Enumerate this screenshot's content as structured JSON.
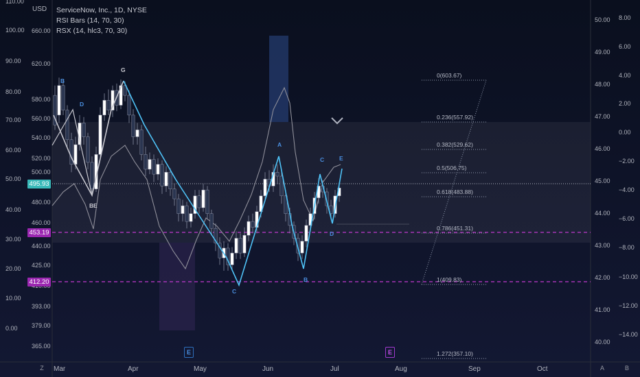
{
  "header": {
    "currency": "USD",
    "symbol_line": "ServiceNow, Inc., 1D, NYSE",
    "indicator1": "RSI Bars (14, 70, 30)",
    "indicator2": "RSX (14, hlc3, 70, 30)"
  },
  "price_tags": {
    "current": "495.93",
    "level_a": "453.19",
    "level_b": "412.20"
  },
  "earnings": {
    "marker1": "E",
    "marker2": "E"
  },
  "bottom_corner": {
    "left": "Z",
    "right_a": "A",
    "right_b": "B"
  },
  "colors": {
    "background": "#0c1022",
    "up_candle": "#ffffff",
    "down_candle": "#2a3550",
    "wave_line": "#4fc3f7",
    "wave_white": "#c8c8d0",
    "fib_dotted": "#8f99ad",
    "level_dashed": "#c23ad0",
    "current_tag": "#39b9b9",
    "level_tag": "#9b27b0",
    "rsx_line": "#8f8f9a",
    "earnings_blue": "#2e6fbd",
    "earnings_purple": "#a23ad0"
  },
  "chart_data": {
    "type": "candlestick",
    "symbol": "ServiceNow, Inc.",
    "interval": "1D",
    "exchange": "NYSE",
    "x_labels": [
      "Mar",
      "Apr",
      "May",
      "Jun",
      "Jul",
      "Aug",
      "Sep",
      "Oct"
    ],
    "price_axis_ticks": [
      "660.00",
      "620.00",
      "580.00",
      "560.00",
      "540.00",
      "520.00",
      "500.00",
      "480.00",
      "460.00",
      "440.00",
      "425.00",
      "410.00",
      "393.00",
      "379.00",
      "365.00"
    ],
    "rsi_axis_ticks": [
      "110.00",
      "100.00",
      "90.00",
      "80.00",
      "70.00",
      "60.00",
      "50.00",
      "40.00",
      "30.00",
      "20.00",
      "10.00",
      "0.00"
    ],
    "right_axis_ticks": [
      "50.00",
      "49.00",
      "48.00",
      "47.00",
      "46.00",
      "45.00",
      "44.00",
      "43.00",
      "42.00",
      "41.00",
      "40.00"
    ],
    "right_axis2_ticks": [
      "8.00",
      "6.00",
      "4.00",
      "2.00",
      "0.00",
      "−2.00",
      "−4.00",
      "−6.00",
      "−8.00",
      "−10.00",
      "−12.00",
      "−14.00"
    ],
    "current_price": 495.93,
    "horizontal_levels": [
      453.19,
      412.2
    ],
    "fibonacci": [
      {
        "label": "0(603.67)",
        "value": 603.67
      },
      {
        "label": "0.236(557.92)",
        "value": 557.92
      },
      {
        "label": "0.382(529.62)",
        "value": 529.62
      },
      {
        "label": "0.5(506.75)",
        "value": 506.75
      },
      {
        "label": "0.618(483.88)",
        "value": 483.88
      },
      {
        "label": "0.786(451.31)",
        "value": 451.31
      },
      {
        "label": "1(409.83)",
        "value": 409.83
      },
      {
        "label": "1.272(357.10)",
        "value": 357.1
      }
    ],
    "wave_labels": [
      "B",
      "D",
      "B",
      "E",
      "G",
      "A",
      "C",
      "C",
      "B",
      "D",
      "E"
    ],
    "earnings_markers": [
      "Apr/May",
      "Jul/Aug"
    ]
  }
}
